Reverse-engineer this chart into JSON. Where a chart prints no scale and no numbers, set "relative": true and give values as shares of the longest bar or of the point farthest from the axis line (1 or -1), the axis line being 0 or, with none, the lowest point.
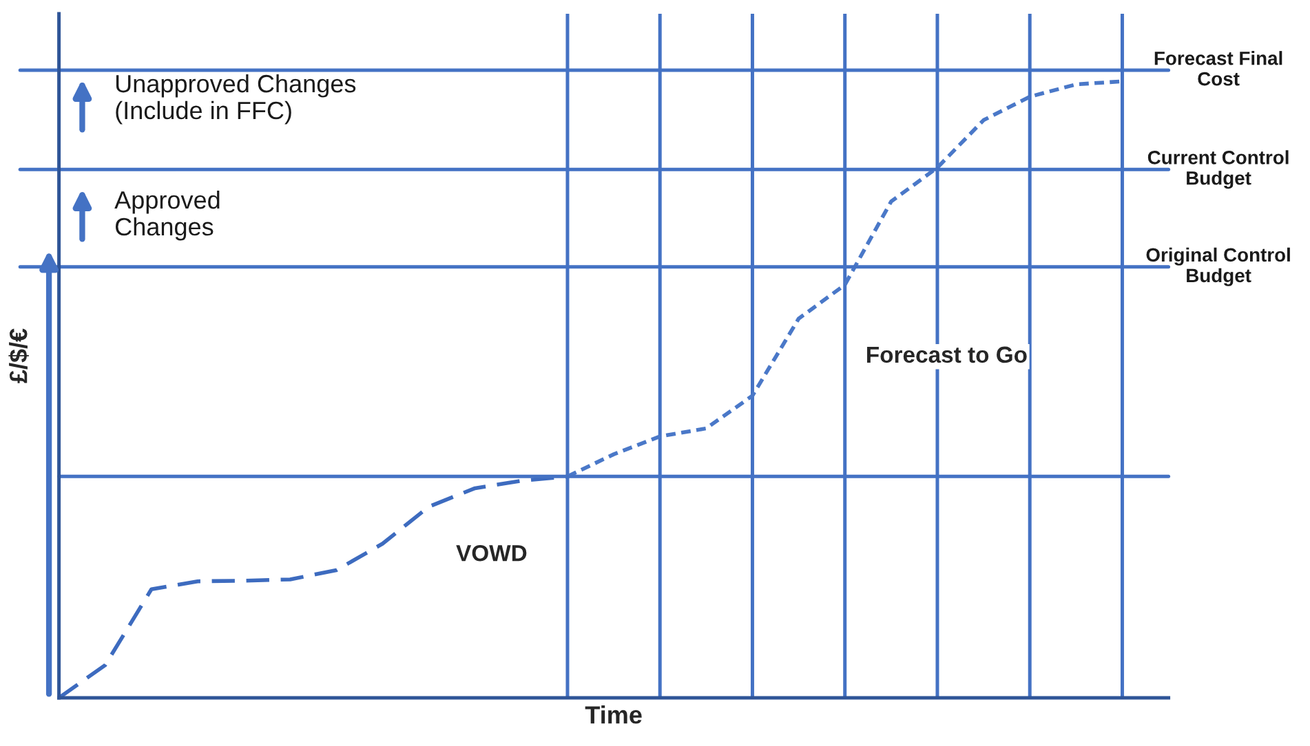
{
  "chart_data": {
    "type": "line",
    "relative": true,
    "xlabel": "Time",
    "ylabel": "£/$/€",
    "tick_labels": false,
    "legend": false,
    "marker": "none",
    "categories": [
      null,
      null,
      null,
      null,
      null,
      null,
      null,
      null,
      null,
      null,
      null,
      null,
      null,
      null,
      null,
      null,
      null,
      null,
      null,
      null,
      null,
      null,
      null,
      null,
      null
    ],
    "series": [
      {
        "name": "VOWD",
        "color": "#3d6bbf",
        "line_style": "dashed",
        "values": [
          0.0,
          0.053,
          0.176,
          0.189,
          0.19,
          0.192,
          0.207,
          0.25,
          0.31,
          0.34,
          0.352,
          0.359,
          null,
          null,
          null,
          null,
          null,
          null,
          null,
          null,
          null,
          null,
          null,
          null,
          null
        ]
      },
      {
        "name": "Forecast to Go",
        "color": "#4a78c8",
        "line_style": "dotted",
        "values": [
          null,
          null,
          null,
          null,
          null,
          null,
          null,
          null,
          null,
          null,
          null,
          0.359,
          0.395,
          0.424,
          0.437,
          0.49,
          0.615,
          0.67,
          0.805,
          0.86,
          0.937,
          0.975,
          0.995,
          1.0,
          null
        ]
      }
    ],
    "ref_lines": [
      {
        "axis": "y",
        "value": 1.018,
        "label": "Forecast Final\nCost",
        "color": "#4472c4"
      },
      {
        "axis": "y",
        "value": 0.857,
        "label": "Current Control\nBudget",
        "color": "#4472c4"
      },
      {
        "axis": "y",
        "value": 0.699,
        "label": "Original Control\nBudget",
        "color": "#4472c4"
      },
      {
        "axis": "y",
        "value": 0.359,
        "color": "#4472c4"
      }
    ],
    "grid": "x",
    "annotations": [
      "Unapproved Changes\n(Include in FFC)",
      "Approved\nChanges"
    ]
  }
}
